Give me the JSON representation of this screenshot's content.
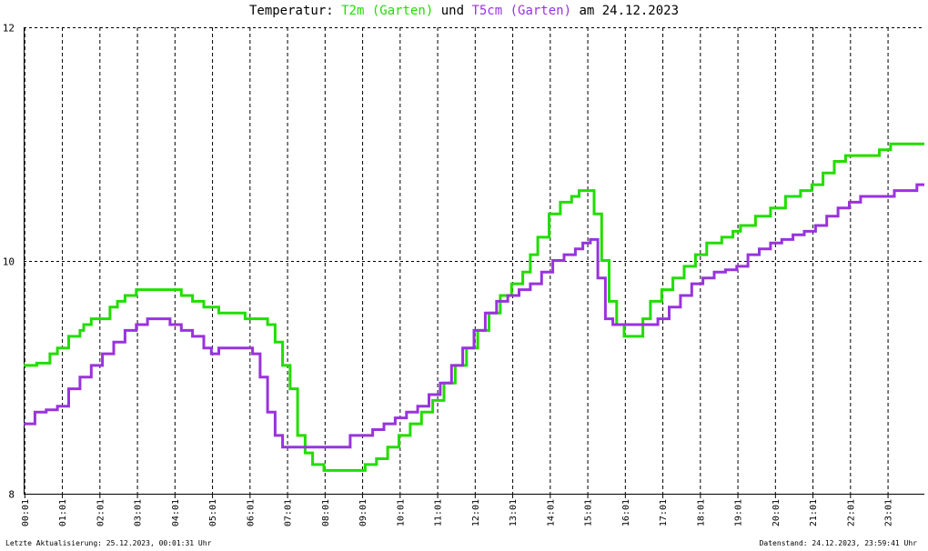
{
  "header": {
    "prefix": "Temperatur: ",
    "series1_label": "T2m (Garten)",
    "connector": " und ",
    "series2_label": "T5cm (Garten)",
    "suffix": " am 24.12.2023"
  },
  "footer": {
    "left": "Letzte Aktualisierung: 25.12.2023, 00:01:31 Uhr",
    "right": "Datenstand: 24.12.2023, 23:59:41 Uhr"
  },
  "colors": {
    "series1": "#22dd00",
    "series2": "#9933dd",
    "grid": "#000000",
    "axis": "#000000"
  },
  "chart_data": {
    "type": "line",
    "title": "Temperatur: T2m (Garten) und T5cm (Garten) am 24.12.2023",
    "xlabel": "",
    "ylabel": "",
    "xlim": [
      0,
      24
    ],
    "ylim": [
      8,
      12
    ],
    "y_ticks": [
      "8",
      "10",
      "12"
    ],
    "x_ticks": [
      "00:01",
      "01:01",
      "02:01",
      "03:01",
      "04:01",
      "05:01",
      "06:01",
      "07:01",
      "08:01",
      "09:01",
      "10:01",
      "11:01",
      "12:01",
      "13:01",
      "14:01",
      "15:01",
      "16:01",
      "17:01",
      "18:01",
      "19:01",
      "20:01",
      "21:01",
      "22:01",
      "23:01"
    ],
    "grid": true,
    "series": [
      {
        "name": "T2m (Garten)",
        "color": "#22dd00",
        "x": [
          0,
          0.1,
          0.35,
          0.7,
          0.9,
          1.2,
          1.5,
          1.6,
          1.8,
          2.0,
          2.3,
          2.5,
          2.7,
          3.0,
          3.3,
          3.6,
          3.9,
          4.2,
          4.5,
          4.8,
          5.2,
          5.5,
          5.9,
          6.2,
          6.5,
          6.7,
          6.9,
          7.1,
          7.3,
          7.5,
          7.7,
          8.0,
          8.3,
          8.6,
          8.9,
          9.1,
          9.4,
          9.7,
          10.0,
          10.3,
          10.6,
          10.9,
          11.2,
          11.5,
          11.8,
          12.1,
          12.4,
          12.7,
          13.0,
          13.3,
          13.5,
          13.7,
          14.0,
          14.3,
          14.6,
          14.8,
          15.0,
          15.2,
          15.4,
          15.6,
          15.8,
          16.0,
          16.3,
          16.5,
          16.7,
          17.0,
          17.3,
          17.6,
          17.9,
          18.2,
          18.6,
          18.9,
          19.1,
          19.5,
          19.9,
          20.3,
          20.7,
          21.0,
          21.3,
          21.6,
          21.9,
          22.2,
          22.5,
          22.8,
          23.1,
          23.4,
          23.7,
          24.0
        ],
        "y": [
          9.1,
          9.1,
          9.12,
          9.2,
          9.25,
          9.35,
          9.4,
          9.45,
          9.5,
          9.5,
          9.6,
          9.65,
          9.7,
          9.75,
          9.75,
          9.75,
          9.75,
          9.7,
          9.65,
          9.6,
          9.55,
          9.55,
          9.5,
          9.5,
          9.45,
          9.3,
          9.1,
          8.9,
          8.5,
          8.35,
          8.25,
          8.2,
          8.2,
          8.2,
          8.2,
          8.25,
          8.3,
          8.4,
          8.5,
          8.6,
          8.7,
          8.8,
          8.95,
          9.1,
          9.25,
          9.4,
          9.55,
          9.7,
          9.8,
          9.9,
          10.05,
          10.2,
          10.4,
          10.5,
          10.55,
          10.6,
          10.6,
          10.4,
          10.0,
          9.65,
          9.45,
          9.35,
          9.35,
          9.5,
          9.65,
          9.75,
          9.85,
          9.95,
          10.05,
          10.15,
          10.2,
          10.25,
          10.3,
          10.38,
          10.45,
          10.55,
          10.6,
          10.65,
          10.75,
          10.85,
          10.9,
          10.9,
          10.9,
          10.95,
          11.0,
          11.0,
          11.0,
          11.0
        ]
      },
      {
        "name": "T5cm (Garten)",
        "color": "#9933dd",
        "x": [
          0,
          0.3,
          0.6,
          0.9,
          1.2,
          1.5,
          1.8,
          2.1,
          2.4,
          2.7,
          3.0,
          3.3,
          3.6,
          3.9,
          4.2,
          4.5,
          4.8,
          5.0,
          5.2,
          5.5,
          5.9,
          6.1,
          6.3,
          6.5,
          6.7,
          6.9,
          7.2,
          7.5,
          7.8,
          8.1,
          8.4,
          8.7,
          9.0,
          9.3,
          9.6,
          9.9,
          10.2,
          10.5,
          10.8,
          11.1,
          11.4,
          11.7,
          12.0,
          12.3,
          12.6,
          12.9,
          13.2,
          13.5,
          13.8,
          14.1,
          14.4,
          14.7,
          14.9,
          15.1,
          15.3,
          15.5,
          15.7,
          16.0,
          16.3,
          16.6,
          16.9,
          17.2,
          17.5,
          17.8,
          18.1,
          18.4,
          18.7,
          19.0,
          19.3,
          19.6,
          19.9,
          20.2,
          20.5,
          20.8,
          21.1,
          21.4,
          21.7,
          22.0,
          22.3,
          22.6,
          22.9,
          23.2,
          23.5,
          23.8,
          24.0
        ],
        "y": [
          8.6,
          8.7,
          8.72,
          8.75,
          8.9,
          9.0,
          9.1,
          9.2,
          9.3,
          9.4,
          9.45,
          9.5,
          9.5,
          9.45,
          9.4,
          9.35,
          9.25,
          9.2,
          9.25,
          9.25,
          9.25,
          9.2,
          9.0,
          8.7,
          8.5,
          8.4,
          8.4,
          8.4,
          8.4,
          8.4,
          8.4,
          8.5,
          8.5,
          8.55,
          8.6,
          8.65,
          8.7,
          8.75,
          8.85,
          8.95,
          9.1,
          9.25,
          9.4,
          9.55,
          9.65,
          9.7,
          9.75,
          9.8,
          9.9,
          10.0,
          10.05,
          10.1,
          10.15,
          10.18,
          9.85,
          9.5,
          9.45,
          9.45,
          9.45,
          9.45,
          9.5,
          9.6,
          9.7,
          9.8,
          9.85,
          9.9,
          9.92,
          9.95,
          10.05,
          10.1,
          10.15,
          10.18,
          10.22,
          10.25,
          10.3,
          10.38,
          10.45,
          10.5,
          10.55,
          10.55,
          10.55,
          10.6,
          10.6,
          10.65,
          10.65
        ]
      }
    ]
  }
}
